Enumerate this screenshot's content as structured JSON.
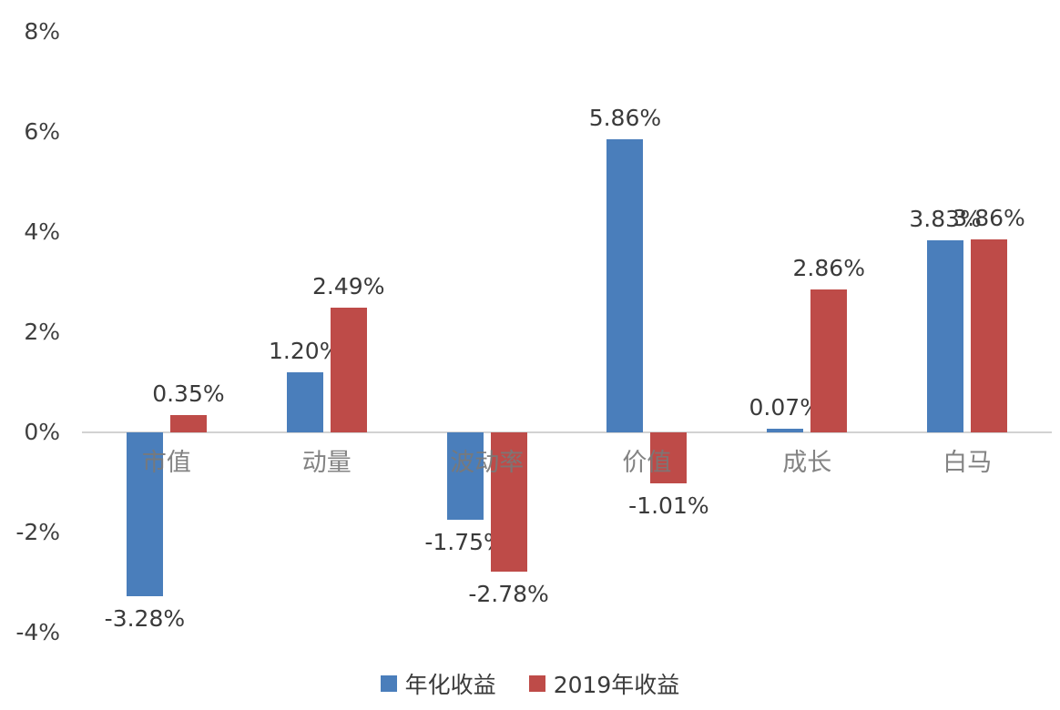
{
  "chart_data": {
    "type": "bar",
    "title": "",
    "categories": [
      "市值",
      "动量",
      "波动率",
      "价值",
      "成长",
      "白马"
    ],
    "series": [
      {
        "name": "年化收益",
        "color": "#4a7ebb",
        "values": [
          -3.28,
          1.2,
          -1.75,
          5.86,
          0.07,
          3.83
        ],
        "labels": [
          "-3.28%",
          "1.20%",
          "-1.75%",
          "5.86%",
          "0.07%",
          "3.83%"
        ]
      },
      {
        "name": "2019年收益",
        "color": "#be4b48",
        "values": [
          0.35,
          2.49,
          -2.78,
          -1.01,
          2.86,
          3.86
        ],
        "labels": [
          "0.35%",
          "2.49%",
          "-2.78%",
          "-1.01%",
          "2.86%",
          "3.86%"
        ]
      }
    ],
    "ylim": [
      -4,
      8
    ],
    "ytick_step": 2,
    "yticks": [
      "8%",
      "6%",
      "4%",
      "2%",
      "0%",
      "-2%",
      "-4%"
    ],
    "grid": "none",
    "legend_position": "bottom",
    "axis_line_color": "#d2d2d2",
    "text_color": "#3a3a3a",
    "category_label_color": "#787878"
  }
}
